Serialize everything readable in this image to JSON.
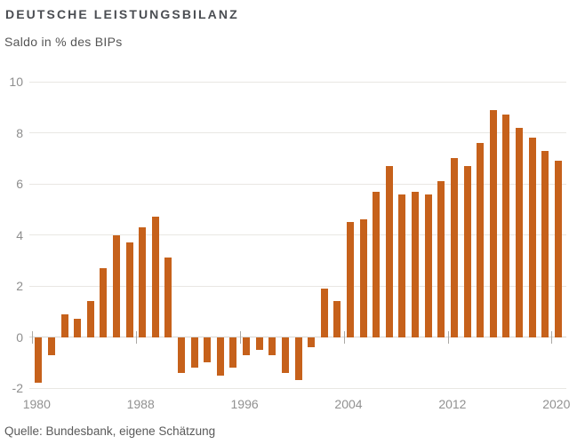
{
  "header": {
    "title": "DEUTSCHE LEISTUNGSBILANZ",
    "subtitle": "Saldo in % des BIPs"
  },
  "footer": {
    "source": "Quelle: Bundesbank, eigene Schätzung"
  },
  "colors": {
    "bar": "#c6611b",
    "grid": "#e9e7e3",
    "zero_line": "#d9d7d3",
    "tick": "#aba9a5",
    "title": "#4a4d52",
    "subtitle": "#555555",
    "axis_label": "#8e8e8e",
    "source": "#5a5a5a",
    "background": "#ffffff"
  },
  "chart_data": {
    "type": "bar",
    "title": "DEUTSCHE LEISTUNGSBILANZ",
    "subtitle": "Saldo in % des BIPs",
    "source": "Quelle: Bundesbank, eigene Schätzung",
    "xlabel": "",
    "ylabel": "Saldo in % des BIPs",
    "ylim": [
      -2,
      10
    ],
    "y_ticks": [
      10,
      8,
      6,
      4,
      2,
      0,
      -2
    ],
    "x_tick_labels": [
      "1980",
      "1988",
      "1996",
      "2004",
      "2012",
      "2020"
    ],
    "grid": true,
    "legend": false,
    "bar_color": "#c6611b",
    "categories": [
      1980,
      1981,
      1982,
      1983,
      1984,
      1985,
      1986,
      1987,
      1988,
      1989,
      1990,
      1991,
      1992,
      1993,
      1994,
      1995,
      1996,
      1997,
      1998,
      1999,
      2000,
      2001,
      2002,
      2003,
      2004,
      2005,
      2006,
      2007,
      2008,
      2009,
      2010,
      2011,
      2012,
      2013,
      2014,
      2015,
      2016,
      2017,
      2018,
      2019,
      2020
    ],
    "values": [
      -1.8,
      -0.7,
      0.9,
      0.7,
      1.4,
      2.7,
      4.0,
      3.7,
      4.3,
      4.7,
      3.1,
      -1.4,
      -1.2,
      -1.0,
      -1.5,
      -1.2,
      -0.7,
      -0.5,
      -0.7,
      -1.4,
      -1.7,
      -0.4,
      1.9,
      1.4,
      4.5,
      4.6,
      5.7,
      6.7,
      5.6,
      5.7,
      5.6,
      6.1,
      7.0,
      6.7,
      7.6,
      8.9,
      8.7,
      8.2,
      7.8,
      7.3,
      6.9
    ]
  }
}
